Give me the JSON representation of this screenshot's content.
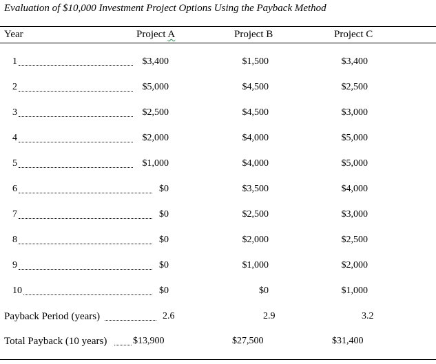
{
  "title": "Evaluation of $10,000 Investment Project Options Using the Payback Method",
  "headers": {
    "year": "Year",
    "project_a": "Project A",
    "project_b": "Project B",
    "project_c": "Project C"
  },
  "rows": [
    {
      "year": "1",
      "a": "$3,400",
      "b": "$1,500",
      "c": "$3,400"
    },
    {
      "year": "2",
      "a": "$5,000",
      "b": "$4,500",
      "c": "$2,500"
    },
    {
      "year": "3",
      "a": "$2,500",
      "b": "$4,500",
      "c": "$3,000"
    },
    {
      "year": "4",
      "a": "$2,000",
      "b": "$4,000",
      "c": "$5,000"
    },
    {
      "year": "5",
      "a": "$1,000",
      "b": "$4,000",
      "c": "$5,000"
    },
    {
      "year": "6",
      "a": "$0",
      "b": "$3,500",
      "c": "$4,000"
    },
    {
      "year": "7",
      "a": "$0",
      "b": "$2,500",
      "c": "$3,000"
    },
    {
      "year": "8",
      "a": "$0",
      "b": "$2,000",
      "c": "$2,500"
    },
    {
      "year": "9",
      "a": "$0",
      "b": "$1,000",
      "c": "$2,000"
    },
    {
      "year": "10",
      "a": "$0",
      "b": "$0",
      "c": "$1,000"
    }
  ],
  "payback": {
    "label": "Payback Period (years)",
    "a": "2.6",
    "b": "2.9",
    "c": "3.2"
  },
  "total": {
    "label": "Total Payback (10 years)",
    "a": "$13,900",
    "b": "$27,500",
    "c": "$31,400"
  }
}
